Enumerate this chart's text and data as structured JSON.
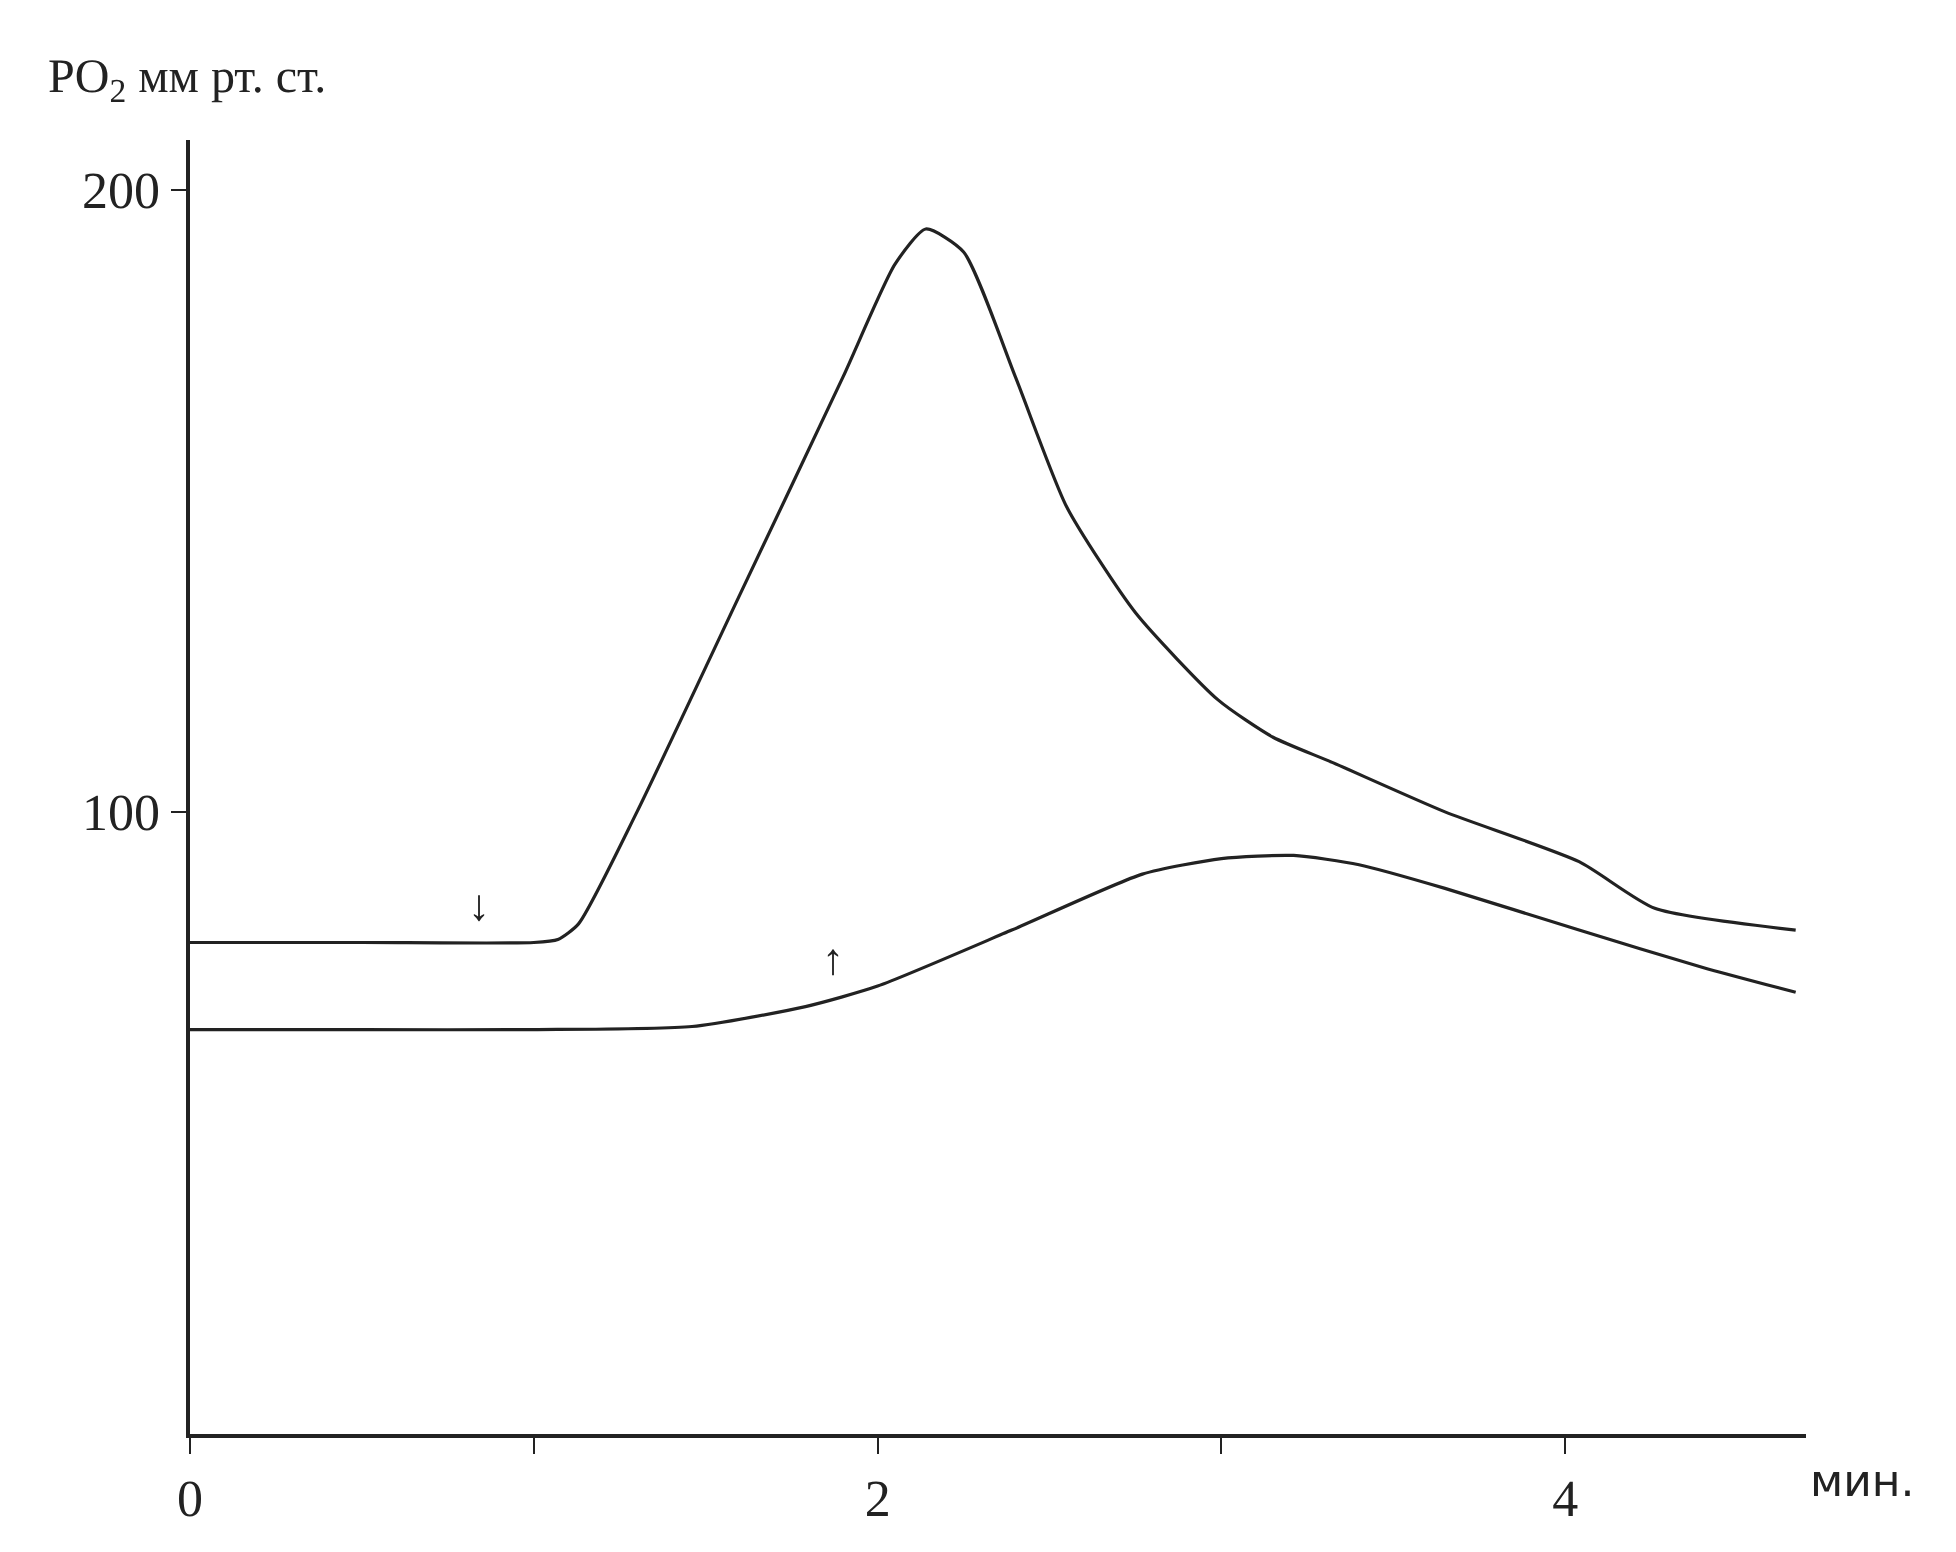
{
  "chart_data": {
    "type": "line",
    "xlabel": "мин.",
    "ylabel": "PO$_{2}$ мм рт. ст.",
    "series": [
      {
        "color": "#222222",
        "x": [
          0,
          0.5,
          1.0,
          1.07,
          1.13,
          1.3,
          1.6,
          1.9,
          2.05,
          2.14,
          2.25,
          2.4,
          2.55,
          2.75,
          2.99,
          3.15,
          3.32,
          3.65,
          4.04,
          4.26,
          4.67
        ],
        "values": [
          79,
          79,
          79,
          79.5,
          82,
          100,
          135,
          170,
          188,
          193.7,
          190,
          170,
          149,
          132,
          118,
          112,
          108,
          100,
          92,
          84.5,
          81
        ]
      },
      {
        "color": "#222222",
        "x": [
          0,
          0.5,
          1.0,
          1.46,
          1.79,
          2.0,
          2.39,
          2.77,
          3.0,
          3.21,
          3.4,
          3.65,
          4.04,
          4.4,
          4.67
        ],
        "values": [
          65,
          65,
          65,
          65.5,
          68.7,
          72,
          81,
          90,
          92.5,
          93,
          91.5,
          87.7,
          81,
          75,
          71
        ]
      }
    ],
    "xlim": [
      0,
      4.7
    ],
    "xticks": [
      0,
      {
        "value": 1,
        "label": null
      },
      2,
      {
        "value": 3,
        "label": null
      },
      4
    ],
    "ylim": [
      0,
      208
    ],
    "yticks": [
      100,
      200
    ],
    "annotations": [
      {
        "text": "↓",
        "x": 0.84,
        "y": 79
      },
      {
        "text": "↑",
        "x": 1.87,
        "y": 70.5
      }
    ],
    "line_style": "solid",
    "marker": "none"
  }
}
